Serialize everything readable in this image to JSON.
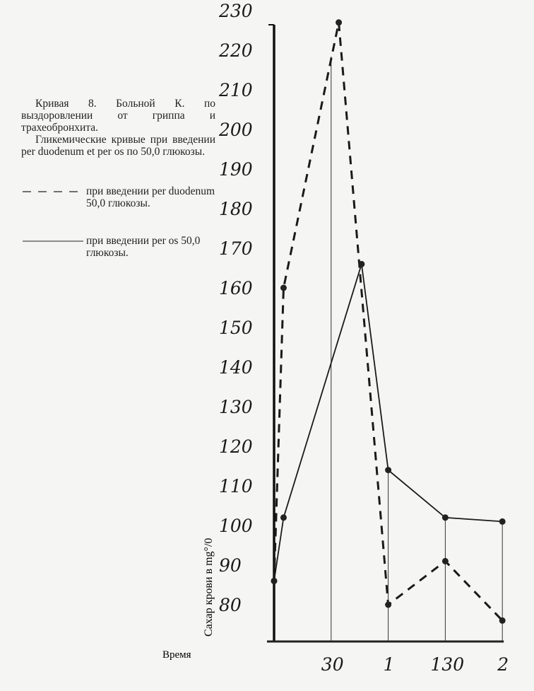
{
  "caption": {
    "title": "Кривая 8. Больной К. по выздоровлении от гриппа и трахеобронхита.",
    "subtitle": "Гликемические кривые при введении per duodenum et per os по 50,0 глюкозы."
  },
  "chart_data": {
    "type": "line",
    "xlabel": "Время",
    "ylabel": "Сахар крови в mg°/0",
    "ylim": [
      70,
      230
    ],
    "yticks": [
      230,
      220,
      210,
      200,
      190,
      180,
      170,
      160,
      150,
      140,
      130,
      120,
      110,
      100,
      90,
      80
    ],
    "xticks": [
      {
        "t": 30,
        "label": "30"
      },
      {
        "t": 60,
        "label": "1"
      },
      {
        "t": 90,
        "label": "130"
      },
      {
        "t": 120,
        "label": "2"
      }
    ],
    "xlim_minutes": [
      0,
      120
    ],
    "grid": "vertical lines at 30, 60, 90, 120",
    "legend_placement": "left",
    "series": [
      {
        "name": "при введении per duodenum 50,0 глюкозы.",
        "style": "dashed",
        "color": "#1a1a1a",
        "points": [
          [
            0,
            86
          ],
          [
            5,
            160
          ],
          [
            34,
            227
          ],
          [
            60,
            80
          ],
          [
            90,
            91
          ],
          [
            120,
            76
          ]
        ]
      },
      {
        "name": "при введении per os 50,0 глюкозы.",
        "style": "solid",
        "color": "#1a1a1a",
        "points": [
          [
            0,
            86
          ],
          [
            5,
            102
          ],
          [
            46,
            166
          ],
          [
            60,
            114
          ],
          [
            90,
            102
          ],
          [
            120,
            101
          ]
        ]
      }
    ]
  }
}
